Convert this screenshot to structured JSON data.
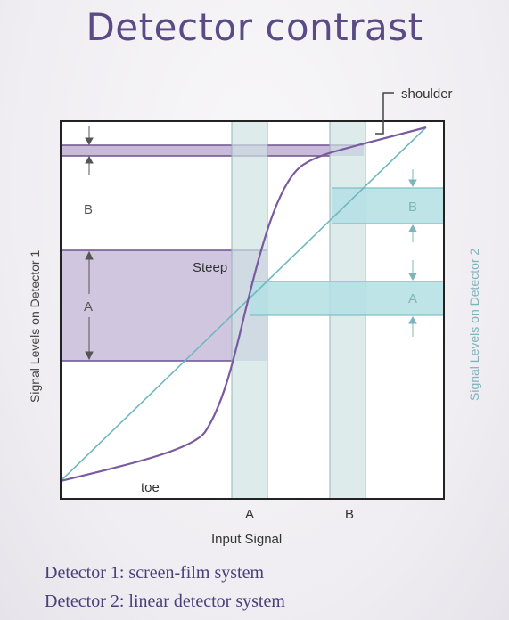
{
  "title": "Detector contrast",
  "labels": {
    "shoulder": "shoulder",
    "steep": "Steep",
    "toe": "toe",
    "left_B": "B",
    "left_A": "A",
    "right_B": "B",
    "right_A": "A",
    "x_A": "A",
    "x_B": "B",
    "x_axis": "Input Signal",
    "y_left": "Signal Levels on Detector 1",
    "y_right": "Signal Levels on Detector 2"
  },
  "captions": {
    "detector1": "Detector 1: screen-film system",
    "detector2": "Detector 2: linear detector system"
  },
  "colors": {
    "curve_detector1": "#7a5a9e",
    "line_detector2": "#6fb8c2",
    "band_purple": "#b7a6cc",
    "band_teal": "#b4dfe4",
    "frame": "#222222",
    "title": "#5a4a86"
  }
}
